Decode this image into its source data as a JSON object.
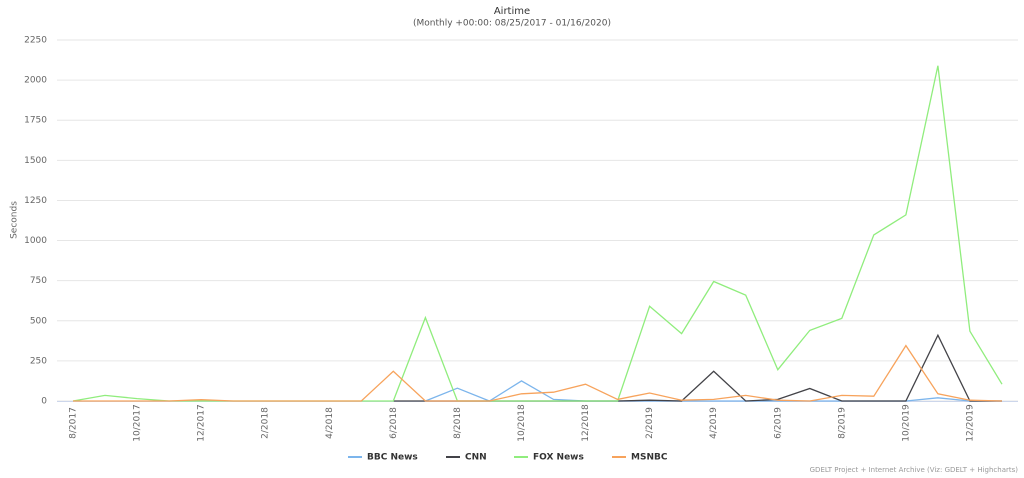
{
  "chart_data": {
    "type": "line",
    "title": "Airtime",
    "subtitle": "(Monthly +00:00: 08/25/2017 - 01/16/2020)",
    "y_label": "Seconds",
    "credits": "GDELT Project + Internet Archive (Viz: GDELT + Highcharts)",
    "categories": [
      "8/2017",
      null,
      "10/2017",
      null,
      "12/2017",
      null,
      "2/2018",
      null,
      "4/2018",
      null,
      "6/2018",
      null,
      "8/2018",
      null,
      "10/2018",
      null,
      "12/2018",
      null,
      "2/2019",
      null,
      "4/2019",
      null,
      "6/2019",
      null,
      "8/2019",
      null,
      "10/2019",
      null,
      "12/2019",
      null
    ],
    "series": [
      {
        "name": "BBC News",
        "color": "#7cb5ec",
        "values": [
          null,
          null,
          null,
          null,
          null,
          null,
          null,
          null,
          null,
          null,
          null,
          0,
          80,
          0,
          125,
          10,
          0,
          0,
          0,
          0,
          0,
          0,
          0,
          0,
          0,
          0,
          0,
          20,
          0,
          0
        ]
      },
      {
        "name": "CNN",
        "color": "#434348",
        "values": [
          null,
          null,
          null,
          null,
          null,
          null,
          null,
          null,
          null,
          null,
          0,
          0,
          0,
          0,
          0,
          0,
          0,
          0,
          5,
          0,
          185,
          0,
          10,
          78,
          0,
          0,
          0,
          410,
          0,
          0
        ]
      },
      {
        "name": "FOX News",
        "color": "#90ed7d",
        "values": [
          0,
          35,
          15,
          0,
          0,
          0,
          0,
          0,
          0,
          0,
          0,
          520,
          0,
          0,
          0,
          0,
          0,
          0,
          590,
          420,
          745,
          660,
          195,
          440,
          515,
          1035,
          1160,
          2090,
          435,
          105
        ]
      },
      {
        "name": "MSNBC",
        "color": "#f7a35c",
        "values": [
          0,
          0,
          0,
          0,
          8,
          0,
          0,
          0,
          0,
          0,
          185,
          0,
          0,
          0,
          45,
          55,
          105,
          10,
          50,
          5,
          10,
          35,
          5,
          0,
          35,
          30,
          345,
          45,
          5,
          0
        ]
      }
    ],
    "ylim": [
      0,
      2250
    ],
    "yticks": [
      0,
      250,
      500,
      750,
      1000,
      1250,
      1500,
      1750,
      2000,
      2250
    ],
    "grid": true,
    "legend": "bottom"
  }
}
